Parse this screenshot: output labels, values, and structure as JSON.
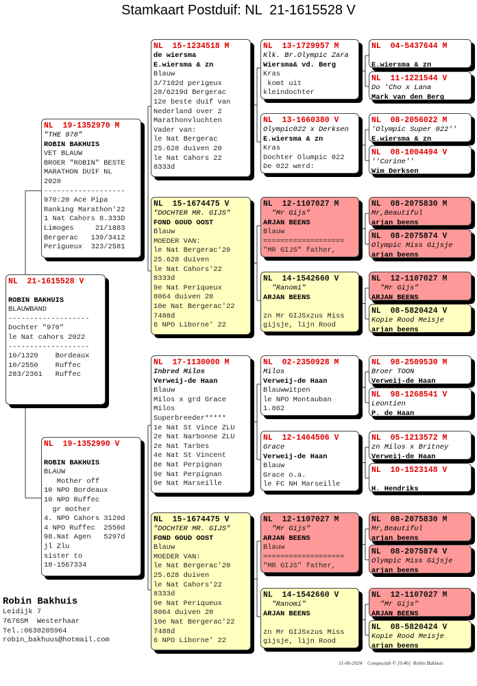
{
  "title": "Stamkaart Postduif: NL  21-1615528 V",
  "colors": {
    "white_box": "#ffffff",
    "yellow_box": "#ffffc0",
    "pink_box": "#ff9999",
    "ring_red": "#e00000"
  },
  "subject": {
    "ring": "NL  21-1615528 V",
    "color": "white",
    "lines": [
      {
        "t": "",
        "s": ""
      },
      {
        "t": "ROBIN BAKHUIS",
        "s": "b"
      },
      {
        "t": "BLAUWBAND",
        "s": ""
      },
      {
        "t": "-------------------",
        "s": ""
      },
      {
        "t": "Dochter \"970\"",
        "s": ""
      },
      {
        "t": "le Nat cahors 2022",
        "s": ""
      },
      {
        "t": "-------------------",
        "s": ""
      },
      {
        "t": "10/1320    Bordeaux",
        "s": ""
      },
      {
        "t": "10/2550    Ruffec",
        "s": ""
      },
      {
        "t": "283/2361   Ruffec",
        "s": ""
      }
    ]
  },
  "sire": {
    "ring": "NL  19-1352970 M",
    "color": "white",
    "lines": [
      {
        "t": "\"THE 970\"",
        "s": "i"
      },
      {
        "t": "ROBIN BAKHUIS",
        "s": "b"
      },
      {
        "t": "VET BLAUW",
        "s": ""
      },
      {
        "t": "BROER \"ROBIN\" BESTE",
        "s": ""
      },
      {
        "t": "MARATHON DUIF NL",
        "s": ""
      },
      {
        "t": "2020",
        "s": ""
      },
      {
        "t": "-------------------",
        "s": ""
      },
      {
        "t": "970:20 Ace Pipa",
        "s": ""
      },
      {
        "t": "Ranking Marathon'22",
        "s": ""
      },
      {
        "t": "1 Nat Cahors 8.333D",
        "s": ""
      },
      {
        "t": "Limoges     21/1883",
        "s": ""
      },
      {
        "t": "Bergerac   139/3412",
        "s": ""
      },
      {
        "t": "Perigueux  323/2581",
        "s": ""
      }
    ]
  },
  "dam": {
    "ring": "NL  19-1352990 V",
    "color": "white",
    "lines": [
      {
        "t": "",
        "s": ""
      },
      {
        "t": "ROBIN BAKHUIS",
        "s": "b"
      },
      {
        "t": "BLAUW",
        "s": ""
      },
      {
        "t": "   Mother off",
        "s": ""
      },
      {
        "t": "10 NPO Bordeaux",
        "s": ""
      },
      {
        "t": "10 NPO Ruffec",
        "s": ""
      },
      {
        "t": "  gr mother",
        "s": ""
      },
      {
        "t": "4. NPO Cahors 3120d",
        "s": ""
      },
      {
        "t": "4 NPO Ruffec  2550d",
        "s": ""
      },
      {
        "t": "98.Nat Agen   5297d",
        "s": ""
      },
      {
        "t": "jl Zlu",
        "s": ""
      },
      {
        "t": "sister to",
        "s": ""
      },
      {
        "t": "18-1567334",
        "s": ""
      }
    ]
  },
  "gen2": [
    {
      "ring": "NL  15-1234518 M",
      "color": "white",
      "lines": [
        {
          "t": "de wiersma",
          "s": "b"
        },
        {
          "t": "E.wiersma & zn",
          "s": "b"
        },
        {
          "t": "Blauw",
          "s": ""
        },
        {
          "t": "3/7102d perigeux",
          "s": ""
        },
        {
          "t": "28/6219d Bergerac",
          "s": ""
        },
        {
          "t": "12e beste duif van",
          "s": ""
        },
        {
          "t": "Nederland over 2",
          "s": ""
        },
        {
          "t": "Marathonvluchten",
          "s": ""
        },
        {
          "t": "Vader van:",
          "s": ""
        },
        {
          "t": "le Nat Bergerac",
          "s": ""
        },
        {
          "t": "25.628 duiven 20",
          "s": ""
        },
        {
          "t": "le Nat Cahors 22",
          "s": ""
        },
        {
          "t": "8333d",
          "s": ""
        }
      ]
    },
    {
      "ring": "NL  15-1674475 V",
      "color": "yellow",
      "lines": [
        {
          "t": "\"DOCHTER MR. GIJS\"",
          "s": "i"
        },
        {
          "t": "FOND GOUD OOST",
          "s": "b"
        },
        {
          "t": "Blauw",
          "s": ""
        },
        {
          "t": "MOEDER VAN:",
          "s": ""
        },
        {
          "t": "le Nat Bergerac'20",
          "s": ""
        },
        {
          "t": "25.628 duiven",
          "s": ""
        },
        {
          "t": "le Nat Cahors'22",
          "s": ""
        },
        {
          "t": "8333d",
          "s": ""
        },
        {
          "t": "9e Nat Periqueux",
          "s": ""
        },
        {
          "t": "8064 duiven 20",
          "s": ""
        },
        {
          "t": "10e Nat Bergerac'22",
          "s": ""
        },
        {
          "t": "7488d",
          "s": ""
        },
        {
          "t": "6 NPO Liborne' 22",
          "s": ""
        }
      ]
    },
    {
      "ring": "NL  17-1130000 M",
      "color": "white",
      "lines": [
        {
          "t": "Inbred Milos",
          "s": "bi"
        },
        {
          "t": "Verweij-de Haan",
          "s": "b"
        },
        {
          "t": "Blauw",
          "s": ""
        },
        {
          "t": "Milos x grd Grace",
          "s": ""
        },
        {
          "t": "Milos",
          "s": ""
        },
        {
          "t": "Superbreeder*****",
          "s": ""
        },
        {
          "t": "1e Nat St Vince ZLU",
          "s": ""
        },
        {
          "t": "2e Nat Narbonne ZLU",
          "s": ""
        },
        {
          "t": "2e Nat Tarbes",
          "s": ""
        },
        {
          "t": "4e Nat St Vincent",
          "s": ""
        },
        {
          "t": "8e Nat Perpignan",
          "s": ""
        },
        {
          "t": "9e Nat Perpignan",
          "s": ""
        },
        {
          "t": "9e Nat Marseille",
          "s": ""
        }
      ]
    },
    {
      "ring": "NL  15-1674475 V",
      "color": "yellow",
      "lines": [
        {
          "t": "\"DOCHTER MR. GIJS\"",
          "s": "i"
        },
        {
          "t": "FOND GOUD OOST",
          "s": "b"
        },
        {
          "t": "Blauw",
          "s": ""
        },
        {
          "t": "MOEDER VAN:",
          "s": ""
        },
        {
          "t": "le Nat Bergerac'20",
          "s": ""
        },
        {
          "t": "25.628 duiven",
          "s": ""
        },
        {
          "t": "le Nat Cahors'22",
          "s": ""
        },
        {
          "t": "8333d",
          "s": ""
        },
        {
          "t": "9e Nat Periqueux",
          "s": ""
        },
        {
          "t": "8064 duiven 20",
          "s": ""
        },
        {
          "t": "10e Nat Bergerac'22",
          "s": ""
        },
        {
          "t": "7488d",
          "s": ""
        },
        {
          "t": "6 NPO Liborne' 22",
          "s": ""
        }
      ]
    }
  ],
  "gen3": [
    {
      "ring": "NL  13-1729957 M",
      "color": "white",
      "lines": [
        {
          "t": "Klk. Br.Olympic Zara",
          "s": "i"
        },
        {
          "t": "Wiersma& vd. Berg",
          "s": "b"
        },
        {
          "t": "Kras",
          "s": ""
        },
        {
          "t": " komt uit",
          "s": ""
        },
        {
          "t": "kleindochter",
          "s": ""
        }
      ]
    },
    {
      "ring": "NL  13-1660380 V",
      "color": "white",
      "lines": [
        {
          "t": "Olympic022 x Derksen",
          "s": "i"
        },
        {
          "t": "E.wiersma & zn",
          "s": "b"
        },
        {
          "t": "Kras",
          "s": ""
        },
        {
          "t": "Dochter Olumpic 022",
          "s": ""
        },
        {
          "t": "De 022 werd:",
          "s": ""
        }
      ]
    },
    {
      "ring": "NL  12-1107027 M",
      "color": "pink",
      "lines": [
        {
          "t": "  \"Mr Gijs\"",
          "s": "i"
        },
        {
          "t": "ARJAN BEENS",
          "s": "b"
        },
        {
          "t": "Blauw",
          "s": ""
        },
        {
          "t": "===================",
          "s": ""
        },
        {
          "t": "\"MR GIJS\" father,",
          "s": ""
        }
      ]
    },
    {
      "ring": "NL  14-1542660 V",
      "color": "yellow",
      "lines": [
        {
          "t": "  \"Ranomi\"",
          "s": "i"
        },
        {
          "t": "ARJAN BEENS",
          "s": "b"
        },
        {
          "t": "",
          "s": ""
        },
        {
          "t": "zn Mr GIJSxzus Miss",
          "s": ""
        },
        {
          "t": "gijsje, lijn Rood",
          "s": ""
        }
      ]
    },
    {
      "ring": "NL  02-2350928 M",
      "color": "white",
      "lines": [
        {
          "t": "Milos",
          "s": "i"
        },
        {
          "t": "Verweij-de Haan",
          "s": "b"
        },
        {
          "t": "Blauwwitpen",
          "s": ""
        },
        {
          "t": "le NPO Montauban",
          "s": ""
        },
        {
          "t": "1.862",
          "s": ""
        }
      ]
    },
    {
      "ring": "NL  12-1464506 V",
      "color": "white",
      "lines": [
        {
          "t": "Grace",
          "s": "i"
        },
        {
          "t": "Verweij-de Haan",
          "s": "b"
        },
        {
          "t": "Blauw",
          "s": ""
        },
        {
          "t": "Grace o.a.",
          "s": ""
        },
        {
          "t": "le FC NH Marseille",
          "s": ""
        }
      ]
    },
    {
      "ring": "NL  12-1107027 M",
      "color": "pink",
      "lines": [
        {
          "t": "  \"Mr Gijs\"",
          "s": "i"
        },
        {
          "t": "ARJAN BEENS",
          "s": "b"
        },
        {
          "t": "Blauw",
          "s": ""
        },
        {
          "t": "===================",
          "s": ""
        },
        {
          "t": "\"MR GIJS\" father,",
          "s": ""
        }
      ]
    },
    {
      "ring": "NL  14-1542660 V",
      "color": "yellow",
      "lines": [
        {
          "t": "  \"Ranomi\"",
          "s": "i"
        },
        {
          "t": "ARJAN BEENS",
          "s": "b"
        },
        {
          "t": "",
          "s": ""
        },
        {
          "t": "zn Mr GIJSxzus Miss",
          "s": ""
        },
        {
          "t": "gijsje, lijn Rood",
          "s": ""
        }
      ]
    }
  ],
  "gen4": [
    {
      "ring": "NL  04-5437644 M",
      "color": "white",
      "lines": [
        {
          "t": "",
          "s": ""
        },
        {
          "t": "E.wiersma & zn",
          "s": "b"
        }
      ]
    },
    {
      "ring": "NL  11-1221544 V",
      "color": "white",
      "lines": [
        {
          "t": "Do 'Cho x Lana",
          "s": "i"
        },
        {
          "t": "Mark van den Berg",
          "s": "b"
        }
      ]
    },
    {
      "ring": "NL  08-2056022 M",
      "color": "white",
      "lines": [
        {
          "t": "'Olympic Super 022''",
          "s": "i"
        },
        {
          "t": "E.wiersma & zn",
          "s": "b"
        }
      ]
    },
    {
      "ring": "NL  08-1004494 V",
      "color": "white",
      "lines": [
        {
          "t": "''Corine''",
          "s": "i"
        },
        {
          "t": "Wim Derksen",
          "s": "b"
        }
      ]
    },
    {
      "ring": "NL  08-2075830 M",
      "color": "pink",
      "lines": [
        {
          "t": "Mr,Beautiful",
          "s": "i"
        },
        {
          "t": "arjan beens",
          "s": "b"
        }
      ]
    },
    {
      "ring": "NL  08-2075874 V",
      "color": "pink",
      "lines": [
        {
          "t": "Olympic Miss Gijsje",
          "s": "i"
        },
        {
          "t": "arjan beens",
          "s": "b"
        }
      ]
    },
    {
      "ring": "NL  12-1107027 M",
      "color": "pink",
      "lines": [
        {
          "t": "  \"Mr Gijs\"",
          "s": "i"
        },
        {
          "t": "ARJAN BEENS",
          "s": "b"
        }
      ]
    },
    {
      "ring": "NL  08-5820424 V",
      "color": "yellow",
      "lines": [
        {
          "t": "Kopie Rood Meisje",
          "s": "i"
        },
        {
          "t": "arjan beens",
          "s": "b"
        }
      ]
    },
    {
      "ring": "NL  98-2509530 M",
      "color": "white",
      "lines": [
        {
          "t": "Broer TOON",
          "s": "i"
        },
        {
          "t": "Verweij-de Haan",
          "s": "b"
        }
      ]
    },
    {
      "ring": "NL  98-1268541 V",
      "color": "white",
      "lines": [
        {
          "t": "Leontien",
          "s": "i"
        },
        {
          "t": "P. de Haan",
          "s": "b"
        }
      ]
    },
    {
      "ring": "NL  05-1213572 M",
      "color": "white",
      "lines": [
        {
          "t": "zn Milos x Britney",
          "s": "i"
        },
        {
          "t": "Verweij-de Haan",
          "s": "b"
        }
      ]
    },
    {
      "ring": "NL  10-1523148 V",
      "color": "white",
      "lines": [
        {
          "t": "",
          "s": ""
        },
        {
          "t": "H. Hendriks",
          "s": "b"
        }
      ]
    },
    {
      "ring": "NL  08-2075830 M",
      "color": "pink",
      "lines": [
        {
          "t": "Mr,Beautiful",
          "s": "i"
        },
        {
          "t": "arjan beens",
          "s": "b"
        }
      ]
    },
    {
      "ring": "NL  08-2075874 V",
      "color": "pink",
      "lines": [
        {
          "t": "Olympic Miss Gijsje",
          "s": "i"
        },
        {
          "t": "arjan beens",
          "s": "b"
        }
      ]
    },
    {
      "ring": "NL  12-1107027 M",
      "color": "pink",
      "lines": [
        {
          "t": "  \"Mr Gijs\"",
          "s": "i"
        },
        {
          "t": "ARJAN BEENS",
          "s": "b"
        }
      ]
    },
    {
      "ring": "NL  08-5820424 V",
      "color": "yellow",
      "lines": [
        {
          "t": "Kopie Rood Meisje",
          "s": "i"
        },
        {
          "t": "arjan beens",
          "s": "b"
        }
      ]
    }
  ],
  "owner": {
    "name": "Robin Bakhuis",
    "address": "Leidijk 7",
    "city": "7676SM  Westerhaar",
    "phone": "Tel.:0630205964",
    "email": "robin_bakhuus@hotmail.com"
  },
  "footer": "11-06-2024    Compuclub © [9.46]  Robin Bakhuis"
}
